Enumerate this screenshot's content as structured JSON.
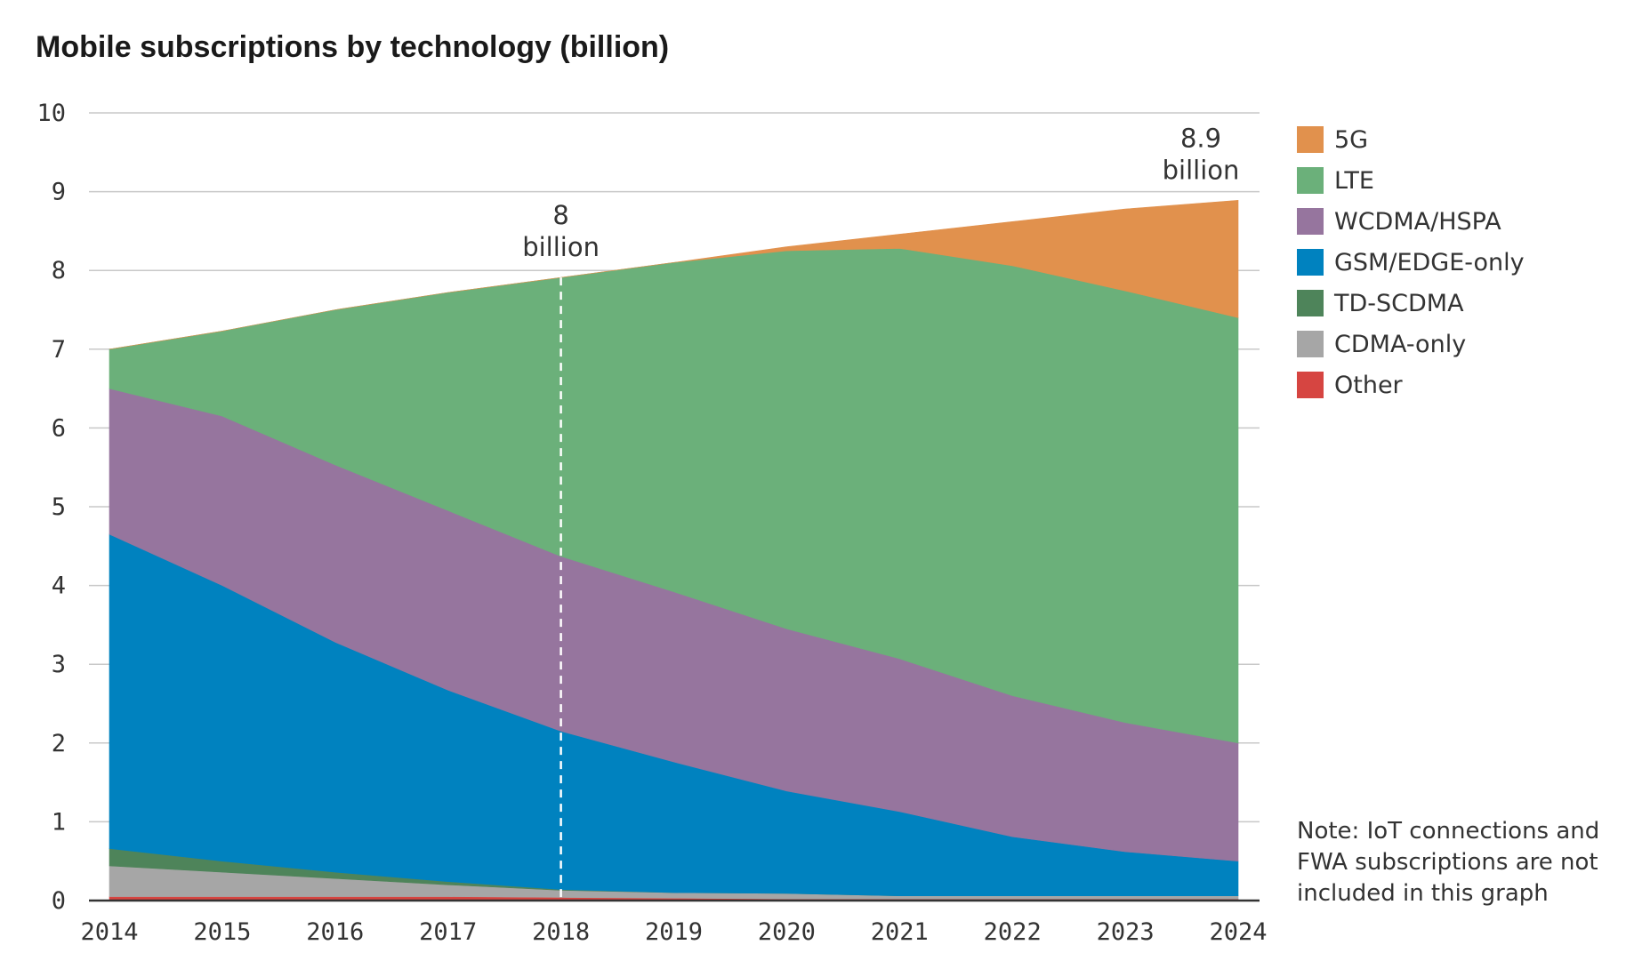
{
  "chart_data": {
    "type": "area",
    "title": "Mobile subscriptions by technology (billion)",
    "xlabel": "",
    "ylabel": "",
    "x": [
      2014,
      2015,
      2016,
      2017,
      2018,
      2019,
      2020,
      2021,
      2022,
      2023,
      2024
    ],
    "ylim": [
      0,
      10
    ],
    "yticks": [
      0,
      1,
      2,
      3,
      4,
      5,
      6,
      7,
      8,
      9,
      10
    ],
    "grid": "horizontal",
    "legend_position": "right",
    "stacked": true,
    "series": [
      {
        "name": "Other",
        "color": "#d64541",
        "values": [
          0.05,
          0.05,
          0.05,
          0.05,
          0.04,
          0.03,
          0.02,
          0.02,
          0.02,
          0.02,
          0.02
        ]
      },
      {
        "name": "CDMA-only",
        "color": "#a6a6a6",
        "values": [
          0.39,
          0.31,
          0.23,
          0.15,
          0.09,
          0.07,
          0.07,
          0.04,
          0.04,
          0.04,
          0.04
        ]
      },
      {
        "name": "TD-SCDMA",
        "color": "#4e845a",
        "values": [
          0.22,
          0.14,
          0.08,
          0.04,
          0.01,
          0.0,
          0.0,
          0.0,
          0.0,
          0.0,
          0.0
        ]
      },
      {
        "name": "GSM/EDGE-only",
        "color": "#0082bf",
        "values": [
          3.99,
          3.5,
          2.92,
          2.43,
          2.01,
          1.66,
          1.3,
          1.07,
          0.75,
          0.56,
          0.44
        ]
      },
      {
        "name": "WCDMA/HSPA",
        "color": "#96759e",
        "values": [
          1.85,
          2.15,
          2.25,
          2.28,
          2.22,
          2.16,
          2.06,
          1.94,
          1.79,
          1.64,
          1.5
        ]
      },
      {
        "name": "LTE",
        "color": "#6bb07a",
        "values": [
          0.5,
          1.08,
          1.97,
          2.77,
          3.54,
          4.18,
          4.8,
          5.21,
          5.46,
          5.48,
          5.4
        ]
      },
      {
        "name": "5G",
        "color": "#e1914d",
        "values": [
          0.0,
          0.0,
          0.0,
          0.0,
          0.0,
          0.0,
          0.05,
          0.18,
          0.56,
          1.04,
          1.49
        ]
      }
    ],
    "legend_order": [
      "5G",
      "LTE",
      "WCDMA/HSPA",
      "GSM/EDGE-only",
      "TD-SCDMA",
      "CDMA-only",
      "Other"
    ],
    "annotations": [
      {
        "x": 2018,
        "value": "8",
        "unit": "billion",
        "marker": "dashed-vertical-line"
      },
      {
        "x": 2024,
        "value": "8.9",
        "unit": "billion"
      }
    ],
    "note": "Note: IoT connections and FWA subscriptions are not included in this graph"
  }
}
